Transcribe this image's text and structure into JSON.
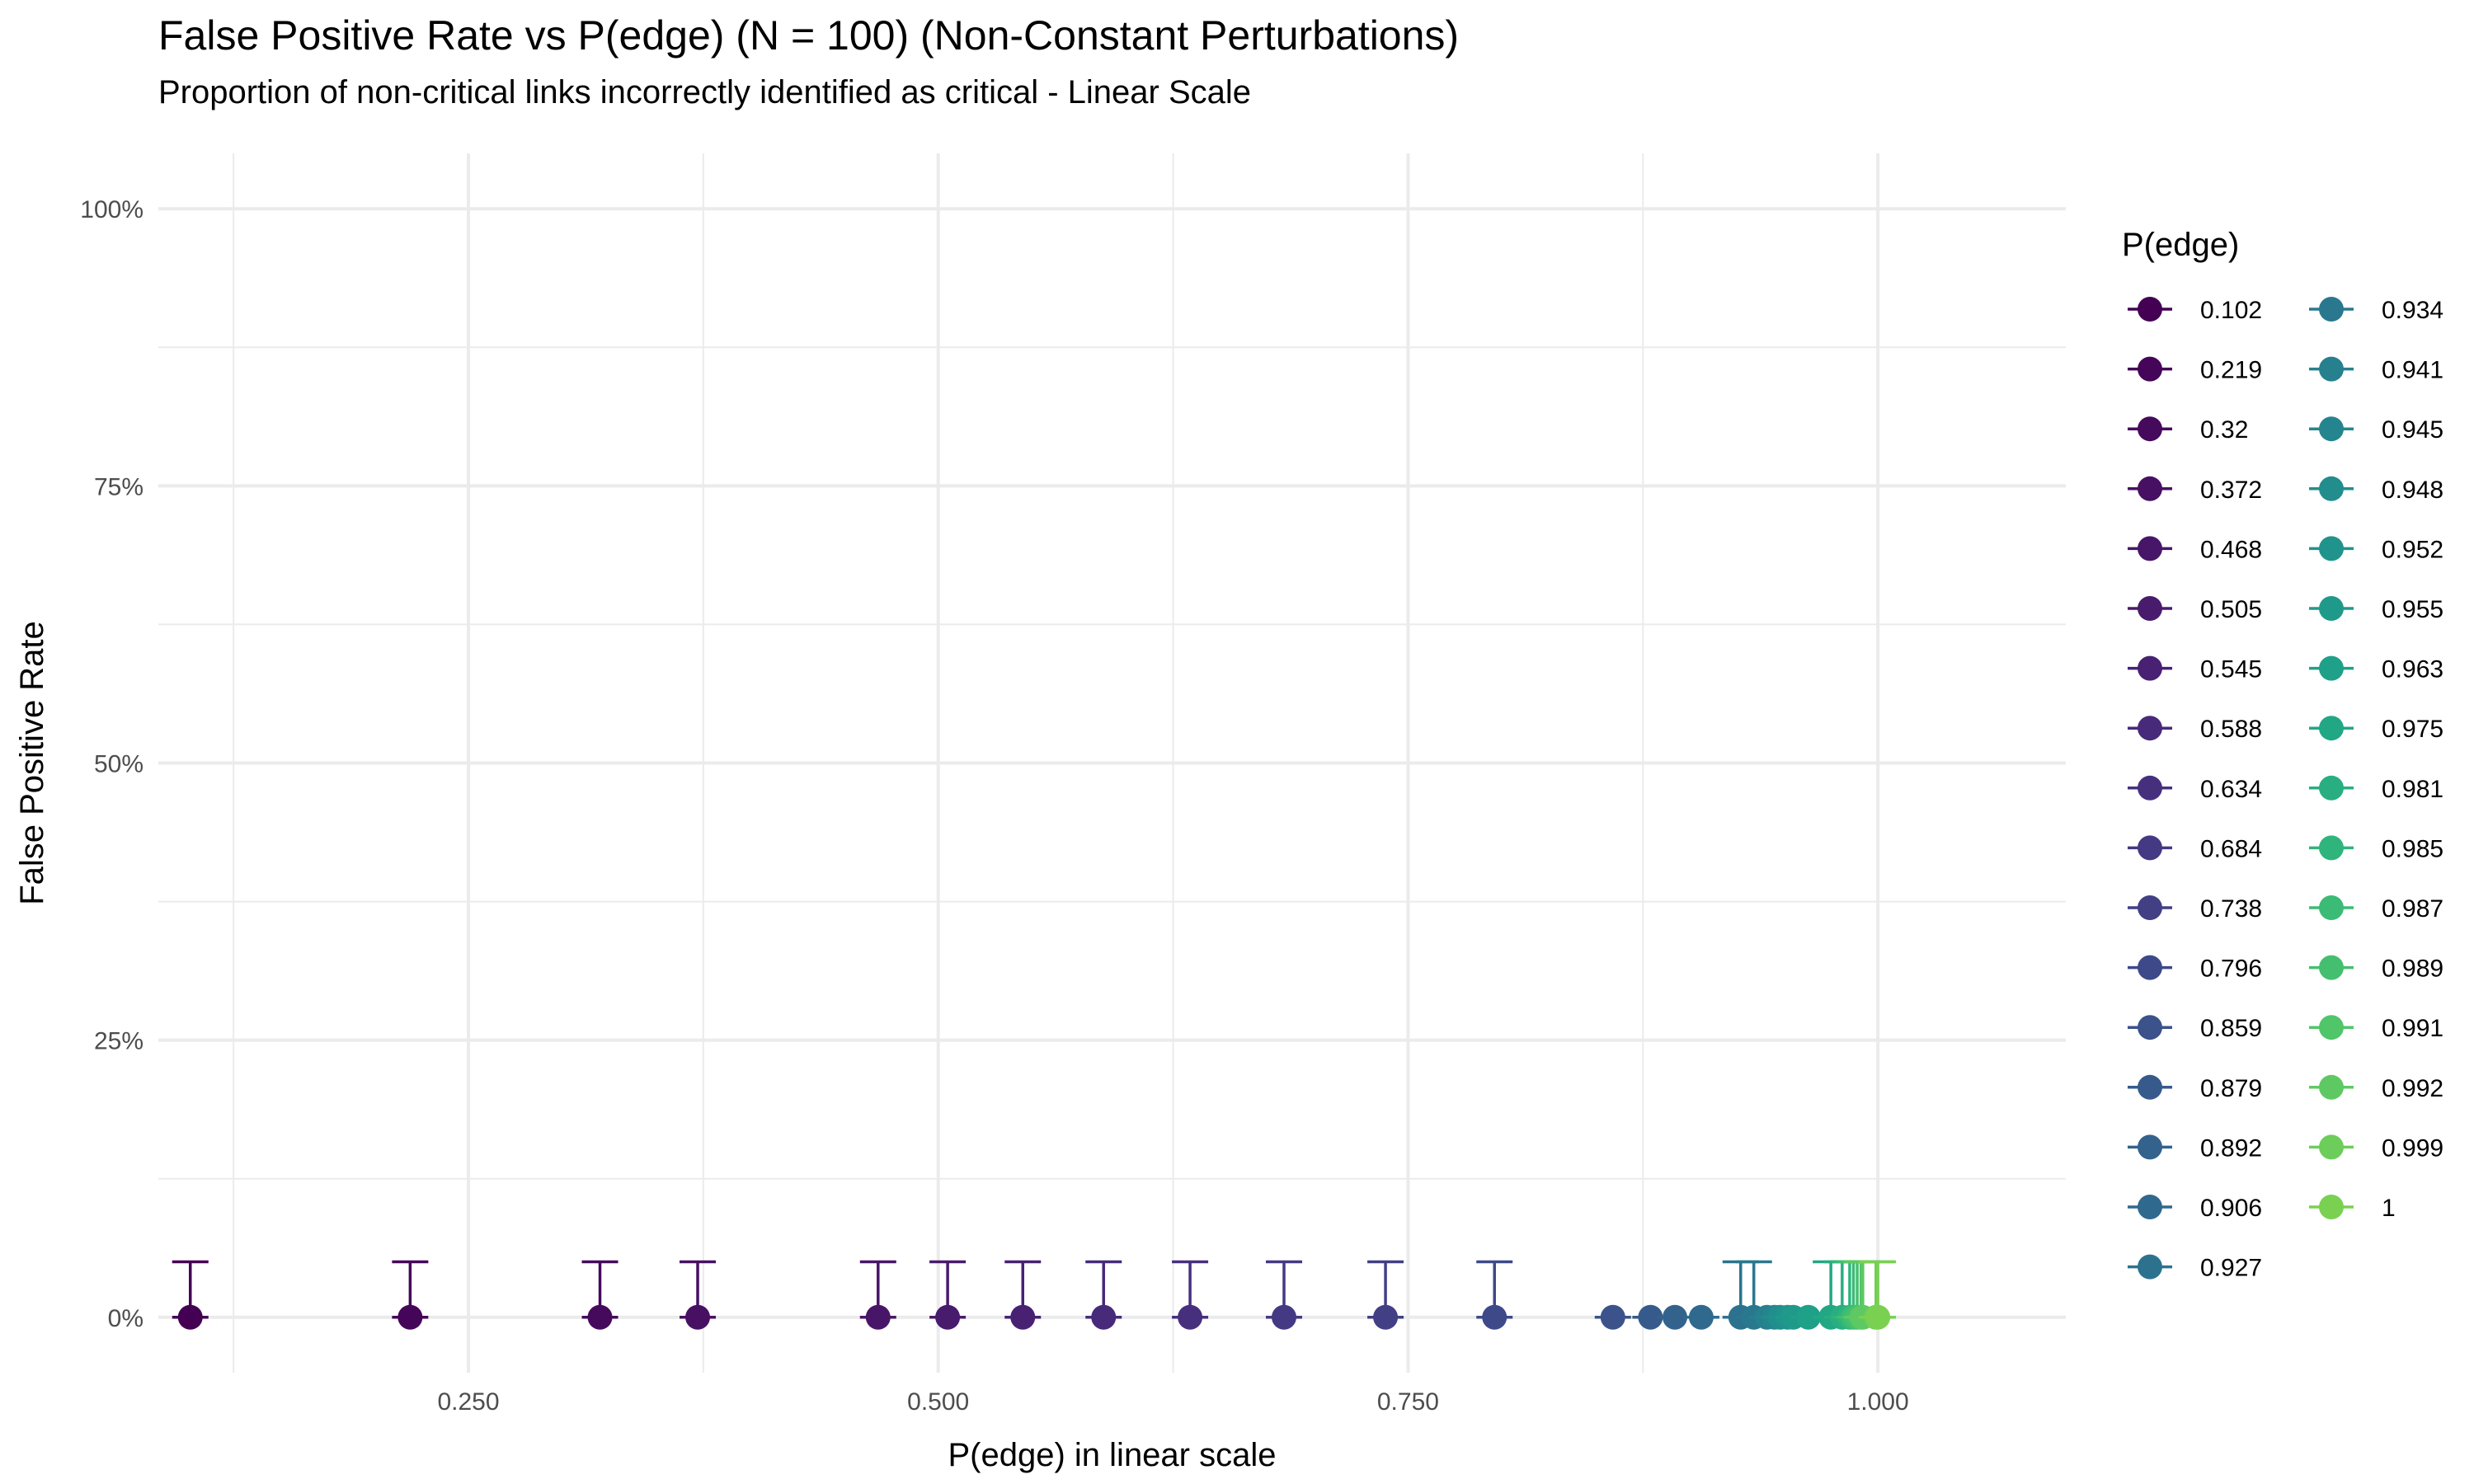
{
  "chart_data": {
    "type": "scatter",
    "title": "False Positive Rate vs P(edge) (N = 100) (Non-Constant Perturbations)",
    "subtitle": "Proportion of non-critical links incorrectly identified as critical - Linear Scale",
    "xlabel": "P(edge) in linear scale",
    "ylabel": "False Positive Rate",
    "xlim": [
      0.085,
      1.1
    ],
    "ylim": [
      -0.05,
      1.05
    ],
    "x_ticks": [
      0.25,
      0.5,
      0.75,
      1.0
    ],
    "x_tick_labels": [
      "0.250",
      "0.500",
      "0.750",
      "1.000"
    ],
    "y_ticks": [
      0,
      0.25,
      0.5,
      0.75,
      1.0
    ],
    "y_tick_labels": [
      "0%",
      "25%",
      "50%",
      "75%",
      "100%"
    ],
    "grid": true,
    "legend": {
      "title": "P(edge)",
      "placement": "right",
      "columns": 2
    },
    "series": [
      {
        "name": "0.102",
        "x": 0.102,
        "y": 0,
        "ymax": 0.05,
        "color": "#440154"
      },
      {
        "name": "0.219",
        "x": 0.219,
        "y": 0,
        "ymax": 0.05,
        "color": "#450559"
      },
      {
        "name": "0.32",
        "x": 0.32,
        "y": 0,
        "ymax": 0.05,
        "color": "#460a5d"
      },
      {
        "name": "0.372",
        "x": 0.372,
        "y": 0,
        "ymax": 0.05,
        "color": "#471063"
      },
      {
        "name": "0.468",
        "x": 0.468,
        "y": 0,
        "ymax": 0.05,
        "color": "#481668"
      },
      {
        "name": "0.505",
        "x": 0.505,
        "y": 0,
        "ymax": 0.05,
        "color": "#481b6d"
      },
      {
        "name": "0.545",
        "x": 0.545,
        "y": 0,
        "ymax": 0.05,
        "color": "#482173"
      },
      {
        "name": "0.588",
        "x": 0.588,
        "y": 0,
        "ymax": 0.05,
        "color": "#472a7a"
      },
      {
        "name": "0.634",
        "x": 0.634,
        "y": 0,
        "ymax": 0.05,
        "color": "#46307e"
      },
      {
        "name": "0.684",
        "x": 0.684,
        "y": 0,
        "ymax": 0.05,
        "color": "#443983"
      },
      {
        "name": "0.738",
        "x": 0.738,
        "y": 0,
        "ymax": 0.05,
        "color": "#423f85"
      },
      {
        "name": "0.796",
        "x": 0.796,
        "y": 0,
        "ymax": 0.05,
        "color": "#3e4989"
      },
      {
        "name": "0.859",
        "x": 0.859,
        "y": 0,
        "ymax": 0,
        "color": "#3b528b"
      },
      {
        "name": "0.879",
        "x": 0.879,
        "y": 0,
        "ymax": 0,
        "color": "#375a8c"
      },
      {
        "name": "0.892",
        "x": 0.892,
        "y": 0,
        "ymax": 0,
        "color": "#33628d"
      },
      {
        "name": "0.906",
        "x": 0.906,
        "y": 0,
        "ymax": 0,
        "color": "#30698e"
      },
      {
        "name": "0.927",
        "x": 0.927,
        "y": 0,
        "ymax": 0.05,
        "color": "#2c728e"
      },
      {
        "name": "0.934",
        "x": 0.934,
        "y": 0,
        "ymax": 0.05,
        "color": "#2a788e"
      },
      {
        "name": "0.941",
        "x": 0.941,
        "y": 0,
        "ymax": 0,
        "color": "#27808e"
      },
      {
        "name": "0.945",
        "x": 0.945,
        "y": 0,
        "ymax": 0,
        "color": "#25858e"
      },
      {
        "name": "0.948",
        "x": 0.948,
        "y": 0,
        "ymax": 0,
        "color": "#228d8d"
      },
      {
        "name": "0.952",
        "x": 0.952,
        "y": 0,
        "ymax": 0,
        "color": "#20938c"
      },
      {
        "name": "0.955",
        "x": 0.955,
        "y": 0,
        "ymax": 0,
        "color": "#1f9a8a"
      },
      {
        "name": "0.963",
        "x": 0.963,
        "y": 0,
        "ymax": 0,
        "color": "#1fa088"
      },
      {
        "name": "0.975",
        "x": 0.975,
        "y": 0,
        "ymax": 0.05,
        "color": "#22a785"
      },
      {
        "name": "0.981",
        "x": 0.981,
        "y": 0,
        "ymax": 0.05,
        "color": "#28ae80"
      },
      {
        "name": "0.985",
        "x": 0.985,
        "y": 0,
        "ymax": 0.05,
        "color": "#2fb47c"
      },
      {
        "name": "0.987",
        "x": 0.987,
        "y": 0,
        "ymax": 0.05,
        "color": "#3bbb75"
      },
      {
        "name": "0.989",
        "x": 0.989,
        "y": 0,
        "ymax": 0.05,
        "color": "#44bf70"
      },
      {
        "name": "0.991",
        "x": 0.991,
        "y": 0,
        "ymax": 0.05,
        "color": "#51c56a"
      },
      {
        "name": "0.992",
        "x": 0.992,
        "y": 0,
        "ymax": 0.05,
        "color": "#5ec962"
      },
      {
        "name": "0.999",
        "x": 0.999,
        "y": 0,
        "ymax": 0.05,
        "color": "#6ccd5a"
      },
      {
        "name": "1",
        "x": 1.0,
        "y": 0,
        "ymax": 0.05,
        "color": "#7ad151"
      }
    ]
  }
}
